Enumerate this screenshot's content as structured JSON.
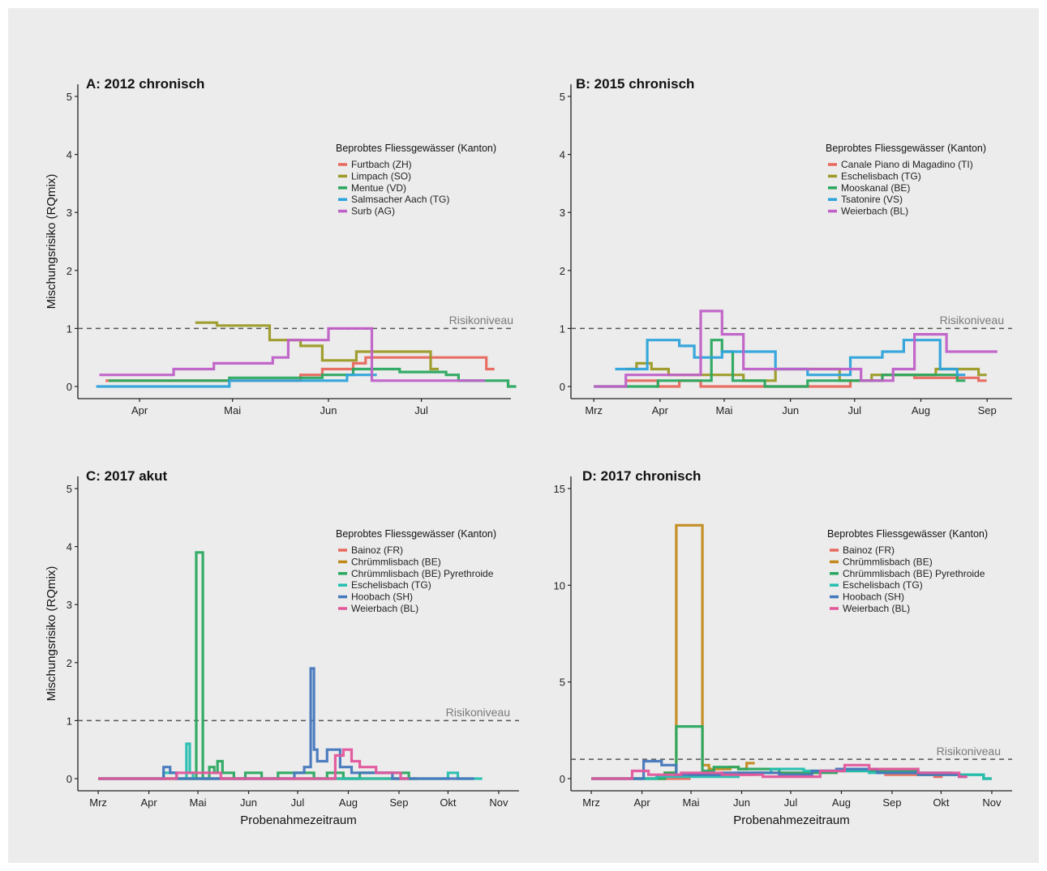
{
  "risk_label": "Risikoniveau",
  "legend_title": "Beprobtes Fliessgewässer (Kanton)",
  "ylabel": "Mischungsrisiko (RQmix)",
  "xlabel": "Probenahmezeitraum",
  "colors": {
    "red": "#e8685c",
    "olive": "#9c9a26",
    "green": "#2aa85f",
    "blue": "#2ea3db",
    "purple": "#c060c8",
    "orange": "#c28a1c",
    "teal": "#25bfb0",
    "steel": "#4577bd",
    "pink": "#e2569c",
    "background": "#ececec",
    "riskline": "#555555"
  },
  "chart_data": [
    {
      "type": "line",
      "title": "A: 2012 chronisch",
      "step": true,
      "ylim": [
        0,
        5
      ],
      "yticks": [
        0,
        1,
        2,
        3,
        4,
        5
      ],
      "xlim": [
        75,
        207
      ],
      "xticks": [
        {
          "x": 91,
          "label": "Apr"
        },
        {
          "x": 121,
          "label": "Mai"
        },
        {
          "x": 152,
          "label": "Jun"
        },
        {
          "x": 182,
          "label": "Jul"
        }
      ],
      "risk_level": 1,
      "legend_position": "top-right",
      "series": [
        {
          "name": "Furtbach (ZH)",
          "color": "#e8685c",
          "x": [
            80,
            143,
            150,
            160,
            164,
            203
          ],
          "y": [
            0.1,
            0.2,
            0.3,
            0.4,
            0.5,
            0.3
          ]
        },
        {
          "name": "Limpach (SO)",
          "color": "#9c9a26",
          "x": [
            109,
            116,
            133,
            143,
            150,
            161,
            185
          ],
          "y": [
            1.1,
            1.05,
            0.8,
            0.7,
            0.45,
            0.6,
            0.3
          ]
        },
        {
          "name": "Mentue (VD)",
          "color": "#2aa85f",
          "x": [
            81,
            120,
            150,
            160,
            175,
            190,
            194,
            210
          ],
          "y": [
            0.1,
            0.15,
            0.2,
            0.3,
            0.25,
            0.2,
            0.1,
            0
          ]
        },
        {
          "name": "Salmsacher Aach (TG)",
          "color": "#2ea3db",
          "x": [
            77,
            92,
            120,
            145,
            158,
            165
          ],
          "y": [
            0,
            0,
            0.1,
            0.1,
            0.2,
            0.2
          ]
        },
        {
          "name": "Surb (AG)",
          "color": "#c060c8",
          "x": [
            78,
            102,
            115,
            134,
            139,
            152,
            166,
            200
          ],
          "y": [
            0.2,
            0.3,
            0.4,
            0.5,
            0.8,
            1.0,
            0.1,
            0.1
          ]
        }
      ]
    },
    {
      "type": "line",
      "title": "B: 2015 chronisch",
      "step": true,
      "ylim": [
        0,
        5
      ],
      "yticks": [
        0,
        1,
        2,
        3,
        4,
        5
      ],
      "xlim": [
        55,
        250
      ],
      "xticks": [
        {
          "x": 60,
          "label": "Mrz"
        },
        {
          "x": 91,
          "label": "Apr"
        },
        {
          "x": 121,
          "label": "Mai"
        },
        {
          "x": 152,
          "label": "Jun"
        },
        {
          "x": 182,
          "label": "Jul"
        },
        {
          "x": 213,
          "label": "Aug"
        },
        {
          "x": 244,
          "label": "Sep"
        }
      ],
      "risk_level": 1,
      "legend_position": "top-right",
      "series": [
        {
          "name": "Canale Piano di Magadino (TI)",
          "color": "#e8685c",
          "x": [
            75,
            90,
            100,
            110,
            180,
            195,
            210,
            240
          ],
          "y": [
            0.1,
            0,
            0.1,
            0,
            0.1,
            0.2,
            0.15,
            0.1
          ]
        },
        {
          "name": "Eschelisbach (TG)",
          "color": "#9c9a26",
          "x": [
            75,
            80,
            87,
            95,
            130,
            145,
            175,
            190,
            220,
            240
          ],
          "y": [
            0.3,
            0.4,
            0.3,
            0.2,
            0.1,
            0.3,
            0.1,
            0.2,
            0.3,
            0.2
          ]
        },
        {
          "name": "Mooskanal (BE)",
          "color": "#2aa85f",
          "x": [
            60,
            90,
            115,
            120,
            125,
            140,
            160,
            175,
            195,
            230
          ],
          "y": [
            0,
            0.1,
            0.8,
            0.6,
            0.1,
            0,
            0.1,
            0.1,
            0.2,
            0.1
          ]
        },
        {
          "name": "Tsatonire (VS)",
          "color": "#2ea3db",
          "x": [
            70,
            78,
            85,
            95,
            100,
            107,
            112,
            120,
            145,
            160,
            180,
            195,
            205,
            212,
            222,
            230
          ],
          "y": [
            0.3,
            0.3,
            0.8,
            0.8,
            0.7,
            0.5,
            0.5,
            0.6,
            0.3,
            0.2,
            0.5,
            0.6,
            0.8,
            0.8,
            0.3,
            0.2
          ]
        },
        {
          "name": "Weierbach (BL)",
          "color": "#c060c8",
          "x": [
            60,
            75,
            110,
            120,
            130,
            185,
            200,
            210,
            225,
            245
          ],
          "y": [
            0,
            0.2,
            1.3,
            0.9,
            0.3,
            0.1,
            0.3,
            0.9,
            0.6,
            0.6
          ]
        }
      ]
    },
    {
      "type": "line",
      "title": "C: 2017 akut",
      "step": true,
      "ylim": [
        0,
        5
      ],
      "yticks": [
        0,
        1,
        2,
        3,
        4,
        5
      ],
      "xlim": [
        55,
        310
      ],
      "xticks": [
        {
          "x": 60,
          "label": "Mrz"
        },
        {
          "x": 91,
          "label": "Apr"
        },
        {
          "x": 121,
          "label": "Mai"
        },
        {
          "x": 152,
          "label": "Jun"
        },
        {
          "x": 182,
          "label": "Jul"
        },
        {
          "x": 213,
          "label": "Aug"
        },
        {
          "x": 244,
          "label": "Sep"
        },
        {
          "x": 274,
          "label": "Okt"
        },
        {
          "x": 305,
          "label": "Nov"
        }
      ],
      "xlabel": "Probenahmezeitraum",
      "risk_level": 1,
      "legend_position": "top-right",
      "series": [
        {
          "name": "Bainoz (FR)",
          "color": "#e8685c",
          "x": [
            60,
            250
          ],
          "y": [
            0,
            0
          ]
        },
        {
          "name": "Chrümmlisbach (BE)",
          "color": "#c28a1c",
          "x": [
            60,
            250
          ],
          "y": [
            0,
            0
          ]
        },
        {
          "name": "Chrümmlisbach (BE) Pyrethroide",
          "color": "#2aa85f",
          "x": [
            60,
            118,
            120,
            124,
            128,
            131,
            133,
            136,
            140,
            143,
            150,
            160,
            170,
            188,
            192,
            200,
            210,
            220,
            250
          ],
          "y": [
            0,
            0,
            3.9,
            0,
            0.2,
            0.1,
            0.3,
            0.1,
            0.1,
            0,
            0.1,
            0,
            0.1,
            0.1,
            0,
            0.1,
            0,
            0.1,
            0
          ]
        },
        {
          "name": "Eschelisbach (TG)",
          "color": "#25bfb0",
          "x": [
            60,
            100,
            108,
            114,
            116,
            118,
            124,
            270,
            274,
            280,
            285,
            290
          ],
          "y": [
            0,
            0.1,
            0,
            0.6,
            0.1,
            0,
            0,
            0,
            0.1,
            0,
            0,
            0
          ]
        },
        {
          "name": "Hoobach (SH)",
          "color": "#4577bd",
          "x": [
            60,
            100,
            104,
            108,
            180,
            186,
            188,
            190,
            192,
            194,
            196,
            200,
            204,
            208,
            215,
            222,
            230,
            240,
            250,
            285
          ],
          "y": [
            0,
            0.2,
            0.1,
            0,
            0.1,
            0.2,
            0.2,
            1.9,
            0.5,
            0.3,
            0.3,
            0.5,
            0.5,
            0.2,
            0.1,
            0.1,
            0.1,
            0,
            0,
            0
          ]
        },
        {
          "name": "Weierbach (BL)",
          "color": "#e2569c",
          "x": [
            60,
            108,
            122,
            135,
            200,
            205,
            210,
            215,
            220,
            225,
            230,
            245
          ],
          "y": [
            0,
            0.1,
            0.1,
            0,
            0,
            0.4,
            0.5,
            0.3,
            0.2,
            0.2,
            0.1,
            0
          ]
        }
      ]
    },
    {
      "type": "line",
      "title": "D: 2017 chronisch",
      "step": true,
      "ylim": [
        0,
        15
      ],
      "yticks": [
        0,
        5,
        10,
        15
      ],
      "xlim": [
        55,
        310
      ],
      "xticks": [
        {
          "x": 60,
          "label": "Mrz"
        },
        {
          "x": 91,
          "label": "Apr"
        },
        {
          "x": 121,
          "label": "Mai"
        },
        {
          "x": 152,
          "label": "Jun"
        },
        {
          "x": 182,
          "label": "Jul"
        },
        {
          "x": 213,
          "label": "Aug"
        },
        {
          "x": 244,
          "label": "Sep"
        },
        {
          "x": 274,
          "label": "Okt"
        },
        {
          "x": 305,
          "label": "Nov"
        }
      ],
      "xlabel": "Probenahmezeitraum",
      "risk_level": 1,
      "legend_position": "top-right",
      "series": [
        {
          "name": "Bainoz (FR)",
          "color": "#e8685c",
          "x": [
            60,
            120,
            160,
            200,
            240,
            270
          ],
          "y": [
            0,
            0.2,
            0.3,
            0.4,
            0.2,
            0.1
          ]
        },
        {
          "name": "Chrümmlisbach (BE)",
          "color": "#c28a1c",
          "x": [
            60,
            105,
            112,
            128,
            132,
            145,
            150,
            155
          ],
          "y": [
            0,
            0.3,
            13.1,
            0.7,
            0.5,
            0.6,
            0.5,
            0.8
          ]
        },
        {
          "name": "Chrümmlisbach (BE) Pyrethroide",
          "color": "#2aa85f",
          "x": [
            60,
            105,
            112,
            128,
            135,
            150,
            175,
            210,
            260,
            300
          ],
          "y": [
            0,
            0.3,
            2.7,
            0.4,
            0.6,
            0.5,
            0.3,
            0.4,
            0.2,
            0
          ]
        },
        {
          "name": "Eschelisbach (TG)",
          "color": "#25bfb0",
          "x": [
            60,
            100,
            150,
            170,
            190,
            230,
            280,
            300
          ],
          "y": [
            0,
            0.1,
            0.3,
            0.5,
            0.4,
            0.3,
            0.2,
            0
          ]
        },
        {
          "name": "Hoobach (SH)",
          "color": "#4577bd",
          "x": [
            60,
            92,
            103,
            112,
            140,
            175,
            195,
            210,
            235,
            260,
            285
          ],
          "y": [
            0,
            0.9,
            0.7,
            0.2,
            0.3,
            0.2,
            0.4,
            0.5,
            0.3,
            0.2,
            0.1
          ]
        },
        {
          "name": "Weierbach (BL)",
          "color": "#e2569c",
          "x": [
            60,
            85,
            95,
            115,
            140,
            165,
            200,
            215,
            230,
            260,
            285
          ],
          "y": [
            0,
            0.4,
            0.2,
            0.3,
            0.2,
            0.1,
            0.4,
            0.7,
            0.5,
            0.3,
            0.1
          ]
        }
      ]
    }
  ]
}
